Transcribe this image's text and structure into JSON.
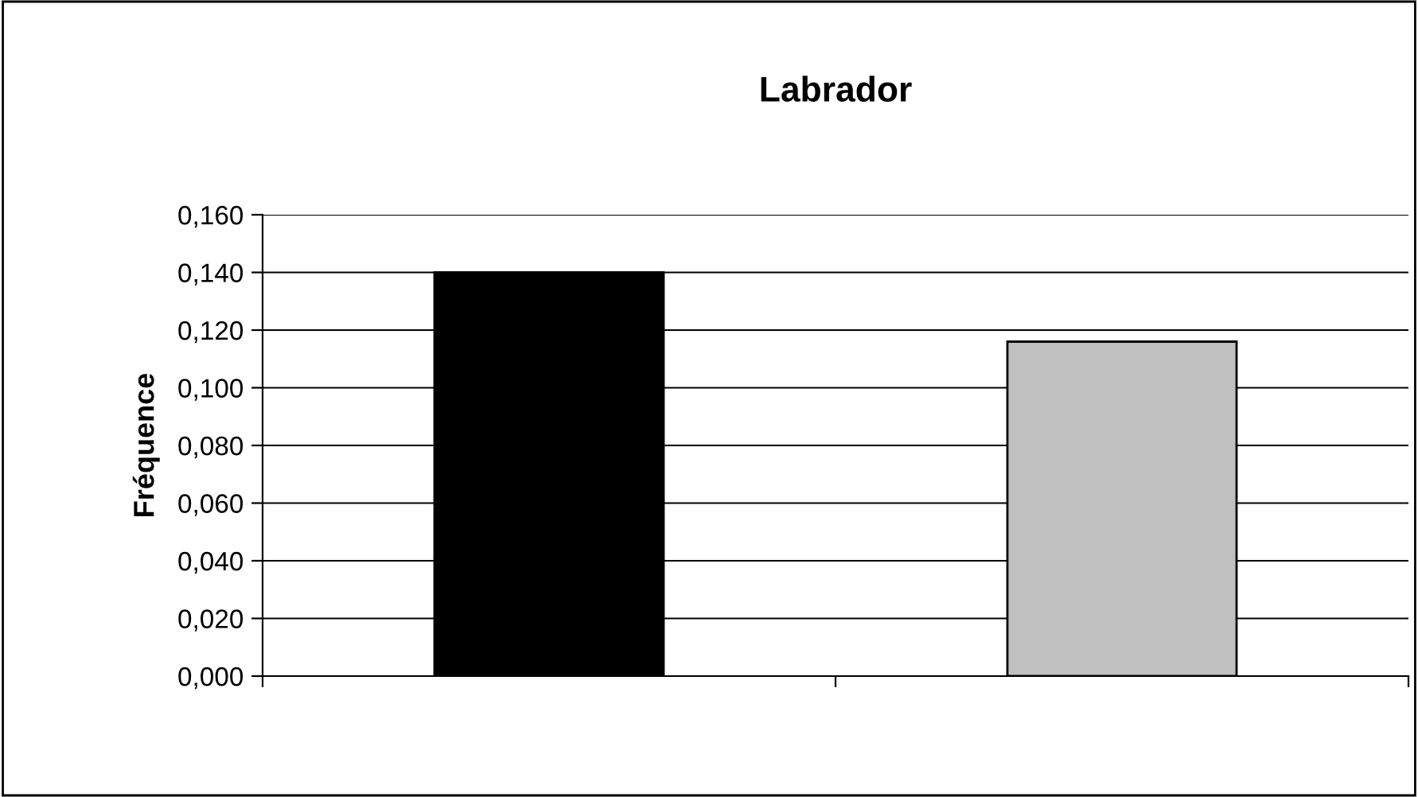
{
  "chart_data": {
    "type": "bar",
    "title": "Labrador",
    "ylabel": "Fréquence",
    "categories": [
      null,
      null
    ],
    "values": [
      0.14,
      0.116
    ],
    "colors": [
      "#000000",
      "#c0c0c0"
    ],
    "ylim": [
      0,
      0.16
    ],
    "yticks": [
      {
        "value": 0,
        "label": "0,000"
      },
      {
        "value": 0.02,
        "label": "0,020"
      },
      {
        "value": 0.04,
        "label": "0,040"
      },
      {
        "value": 0.06,
        "label": "0,060"
      },
      {
        "value": 0.08,
        "label": "0,080"
      },
      {
        "value": 0.1,
        "label": "0,100"
      },
      {
        "value": 0.12,
        "label": "0,120"
      },
      {
        "value": 0.14,
        "label": "0,140"
      },
      {
        "value": 0.16,
        "label": "0,160"
      }
    ],
    "grid": "y",
    "legend": false
  }
}
